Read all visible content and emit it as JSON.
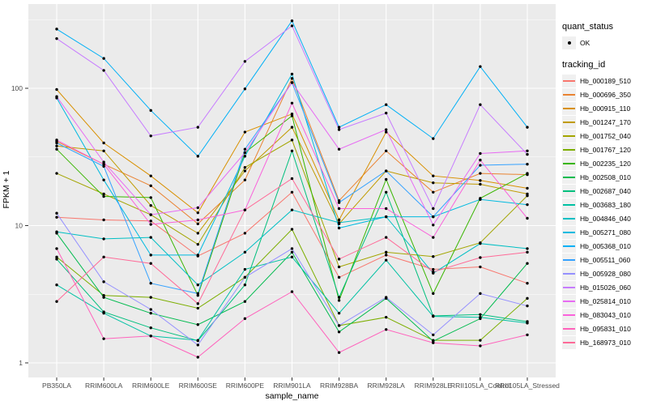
{
  "chart_data": {
    "type": "line",
    "title": "",
    "xlabel": "sample_name",
    "ylabel": "FPKM + 1",
    "y_scale": "log10",
    "ylim": [
      1,
      400
    ],
    "y_tick_labels": [
      "1",
      "10",
      "100"
    ],
    "y_ticks": [
      1,
      10,
      100
    ],
    "y_minor_ticks": [
      3.162,
      31.62,
      316.2
    ],
    "grid": "on",
    "panel_bg": "#EBEBEB",
    "grid_color": "#FFFFFF",
    "point_color": "#000000",
    "legend_position": "right",
    "categories": [
      "PB350LA",
      "RRIM600LA",
      "RRIM600LE",
      "RRIM600SE",
      "RRIM600PE",
      "RRIM901LA",
      "RRIM928BA",
      "RRIM928LA",
      "RRIM928LE",
      "RRII105LA_Control",
      "RRII105LA_Stressed"
    ],
    "legend": {
      "quant_status_title": "quant_status",
      "quant_status_item": {
        "label": "OK",
        "symbol": "black-point"
      },
      "tracking_id_title": "tracking_id"
    },
    "series": [
      {
        "name": "Hb_000189_510",
        "color": "#F8766D",
        "values": [
          11.5,
          11.0,
          10.8,
          6.0,
          8.8,
          17.5,
          4.2,
          6.1,
          4.8,
          5.0,
          3.8
        ]
      },
      {
        "name": "Hb_000696_350",
        "color": "#EA8331",
        "values": [
          41,
          28,
          19.5,
          10.3,
          21.5,
          118,
          15.2,
          35,
          17.5,
          24,
          23.5
        ]
      },
      {
        "name": "Hb_000915_110",
        "color": "#D89000",
        "values": [
          98,
          40,
          23,
          12.4,
          48,
          65,
          11.0,
          48,
          23,
          21.3,
          18.7
        ]
      },
      {
        "name": "Hb_001247_170",
        "color": "#C09B00",
        "values": [
          38,
          35,
          14,
          8.8,
          25,
          52,
          10.3,
          25,
          20.5,
          20,
          17
        ]
      },
      {
        "name": "Hb_001752_040",
        "color": "#A3A500",
        "values": [
          24,
          17,
          12,
          7.3,
          26.5,
          42,
          5.0,
          6.4,
          5.95,
          7.5,
          16.5
        ]
      },
      {
        "name": "Hb_001767_120",
        "color": "#7CAE00",
        "values": [
          5.9,
          3.1,
          3.0,
          2.5,
          4.2,
          9.4,
          1.87,
          2.15,
          1.46,
          1.46,
          2.95
        ]
      },
      {
        "name": "Hb_002235_120",
        "color": "#39B600",
        "values": [
          36,
          16.3,
          16,
          3.1,
          34,
          63,
          2.85,
          21.7,
          3.2,
          15.8,
          24
        ]
      },
      {
        "name": "Hb_002508_010",
        "color": "#00BB4E",
        "values": [
          8.8,
          3.0,
          2.3,
          1.9,
          2.8,
          6.4,
          1.68,
          2.95,
          1.44,
          2.1,
          5.3
        ]
      },
      {
        "name": "Hb_002687_040",
        "color": "#00BF7D",
        "values": [
          5.7,
          2.35,
          1.8,
          1.45,
          3.7,
          35,
          3.0,
          17.5,
          2.2,
          2.25,
          2.0
        ]
      },
      {
        "name": "Hb_003683_180",
        "color": "#00C1A3",
        "values": [
          3.7,
          2.3,
          1.57,
          1.46,
          4.8,
          5.9,
          2.3,
          5.6,
          2.18,
          2.15,
          1.95
        ]
      },
      {
        "name": "Hb_004846_040",
        "color": "#00BFC4",
        "values": [
          9.0,
          8.0,
          8.2,
          3.7,
          6.4,
          13,
          10.5,
          11.6,
          4.5,
          7.4,
          6.8
        ]
      },
      {
        "name": "Hb_005271_080",
        "color": "#00BAE0",
        "values": [
          85,
          21.5,
          6.1,
          6.1,
          32,
          127,
          9.6,
          11.6,
          11.6,
          15.5,
          14.2
        ]
      },
      {
        "name": "Hb_005368_010",
        "color": "#00B0F6",
        "values": [
          270,
          165,
          69,
          32,
          99,
          310,
          52,
          76,
          43,
          144,
          52
        ]
      },
      {
        "name": "Hb_005511_060",
        "color": "#35A2FF",
        "values": [
          40,
          27,
          3.8,
          3.2,
          36,
          110,
          14.7,
          25,
          11.6,
          27.5,
          28
        ]
      },
      {
        "name": "Hb_005928_080",
        "color": "#9590FF",
        "values": [
          12.3,
          3.9,
          2.45,
          1.35,
          4.2,
          6.8,
          1.87,
          3.0,
          1.6,
          3.2,
          2.6
        ]
      },
      {
        "name": "Hb_015026_060",
        "color": "#C77CFF",
        "values": [
          230,
          135,
          45,
          52,
          157,
          285,
          50,
          66,
          13.3,
          76,
          33
        ]
      },
      {
        "name": "Hb_025814_010",
        "color": "#E76BF3",
        "values": [
          87,
          29,
          12.0,
          13.5,
          34,
          110,
          36,
          50,
          10.1,
          33.5,
          35
        ]
      },
      {
        "name": "Hb_083043_010",
        "color": "#FA62DB",
        "values": [
          42,
          28,
          10.2,
          11.0,
          13,
          78,
          13.3,
          13.3,
          8.2,
          30,
          11.3
        ]
      },
      {
        "name": "Hb_095831_010",
        "color": "#FF62BC",
        "values": [
          6.8,
          1.5,
          1.57,
          1.1,
          2.1,
          3.3,
          1.19,
          1.75,
          1.4,
          1.33,
          1.6
        ]
      },
      {
        "name": "Hb_168973_010",
        "color": "#FF6A98",
        "values": [
          2.8,
          5.9,
          5.3,
          2.7,
          13,
          22,
          5.7,
          8.2,
          4.6,
          5.85,
          6.4
        ]
      }
    ]
  }
}
